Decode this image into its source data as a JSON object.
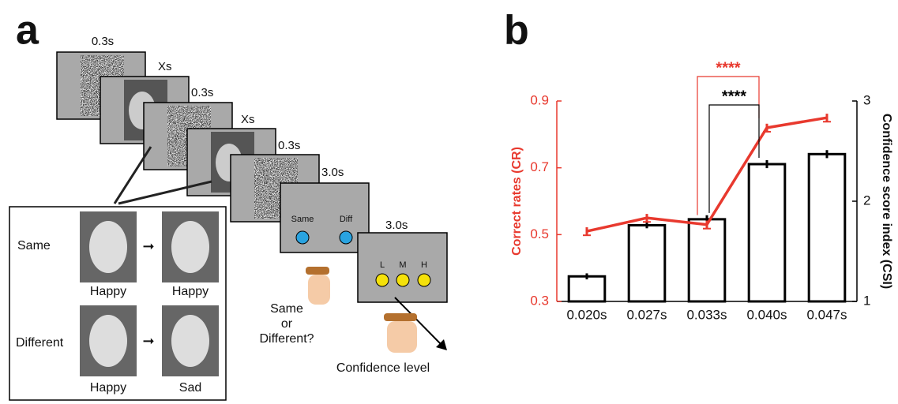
{
  "panel_a": {
    "label": "a",
    "durations": [
      "0.3s",
      "Xs",
      "0.3s",
      "Xs",
      "0.3s"
    ],
    "response_screen": {
      "duration": "3.0s",
      "options": [
        "Same",
        "Diff"
      ]
    },
    "confidence_screen": {
      "duration": "3.0s",
      "options": [
        "L",
        "M",
        "H"
      ]
    },
    "response_prompt": [
      "Same",
      "or",
      "Different?"
    ],
    "confidence_prompt": "Confidence level",
    "examples": [
      {
        "condition": "Same",
        "labels": [
          "Happy",
          "Happy"
        ]
      },
      {
        "condition": "Different",
        "labels": [
          "Happy",
          "Sad"
        ]
      }
    ]
  },
  "chart_data": {
    "type": "bar",
    "panel_label": "b",
    "categories": [
      "0.020s",
      "0.027s",
      "0.033s",
      "0.040s",
      "0.047s"
    ],
    "ylabel": "Correct rates (CR)",
    "y2label": "Confidence score index (CSI)",
    "ylim": [
      0.3,
      0.9
    ],
    "yticks": [
      0.3,
      0.5,
      0.7,
      0.9
    ],
    "y2lim": [
      1,
      3
    ],
    "y2ticks": [
      1,
      2,
      3
    ],
    "series": [
      {
        "type": "bar",
        "axis": "y2",
        "color": "#000000",
        "values": [
          1.25,
          1.76,
          1.82,
          2.37,
          2.47
        ],
        "errors": [
          0.03,
          0.03,
          0.04,
          0.04,
          0.04
        ]
      },
      {
        "type": "line",
        "axis": "y",
        "color": "#e8392e",
        "values": [
          0.51,
          0.55,
          0.53,
          0.82,
          0.85
        ],
        "errors": [
          0.012,
          0.012,
          0.012,
          0.012,
          0.012
        ]
      }
    ],
    "annotations": [
      {
        "text": "****",
        "color": "#e8392e",
        "between": [
          "0.033s",
          "0.040s"
        ]
      },
      {
        "text": "****",
        "color": "#000000",
        "between": [
          "0.033s",
          "0.040s"
        ]
      }
    ]
  }
}
